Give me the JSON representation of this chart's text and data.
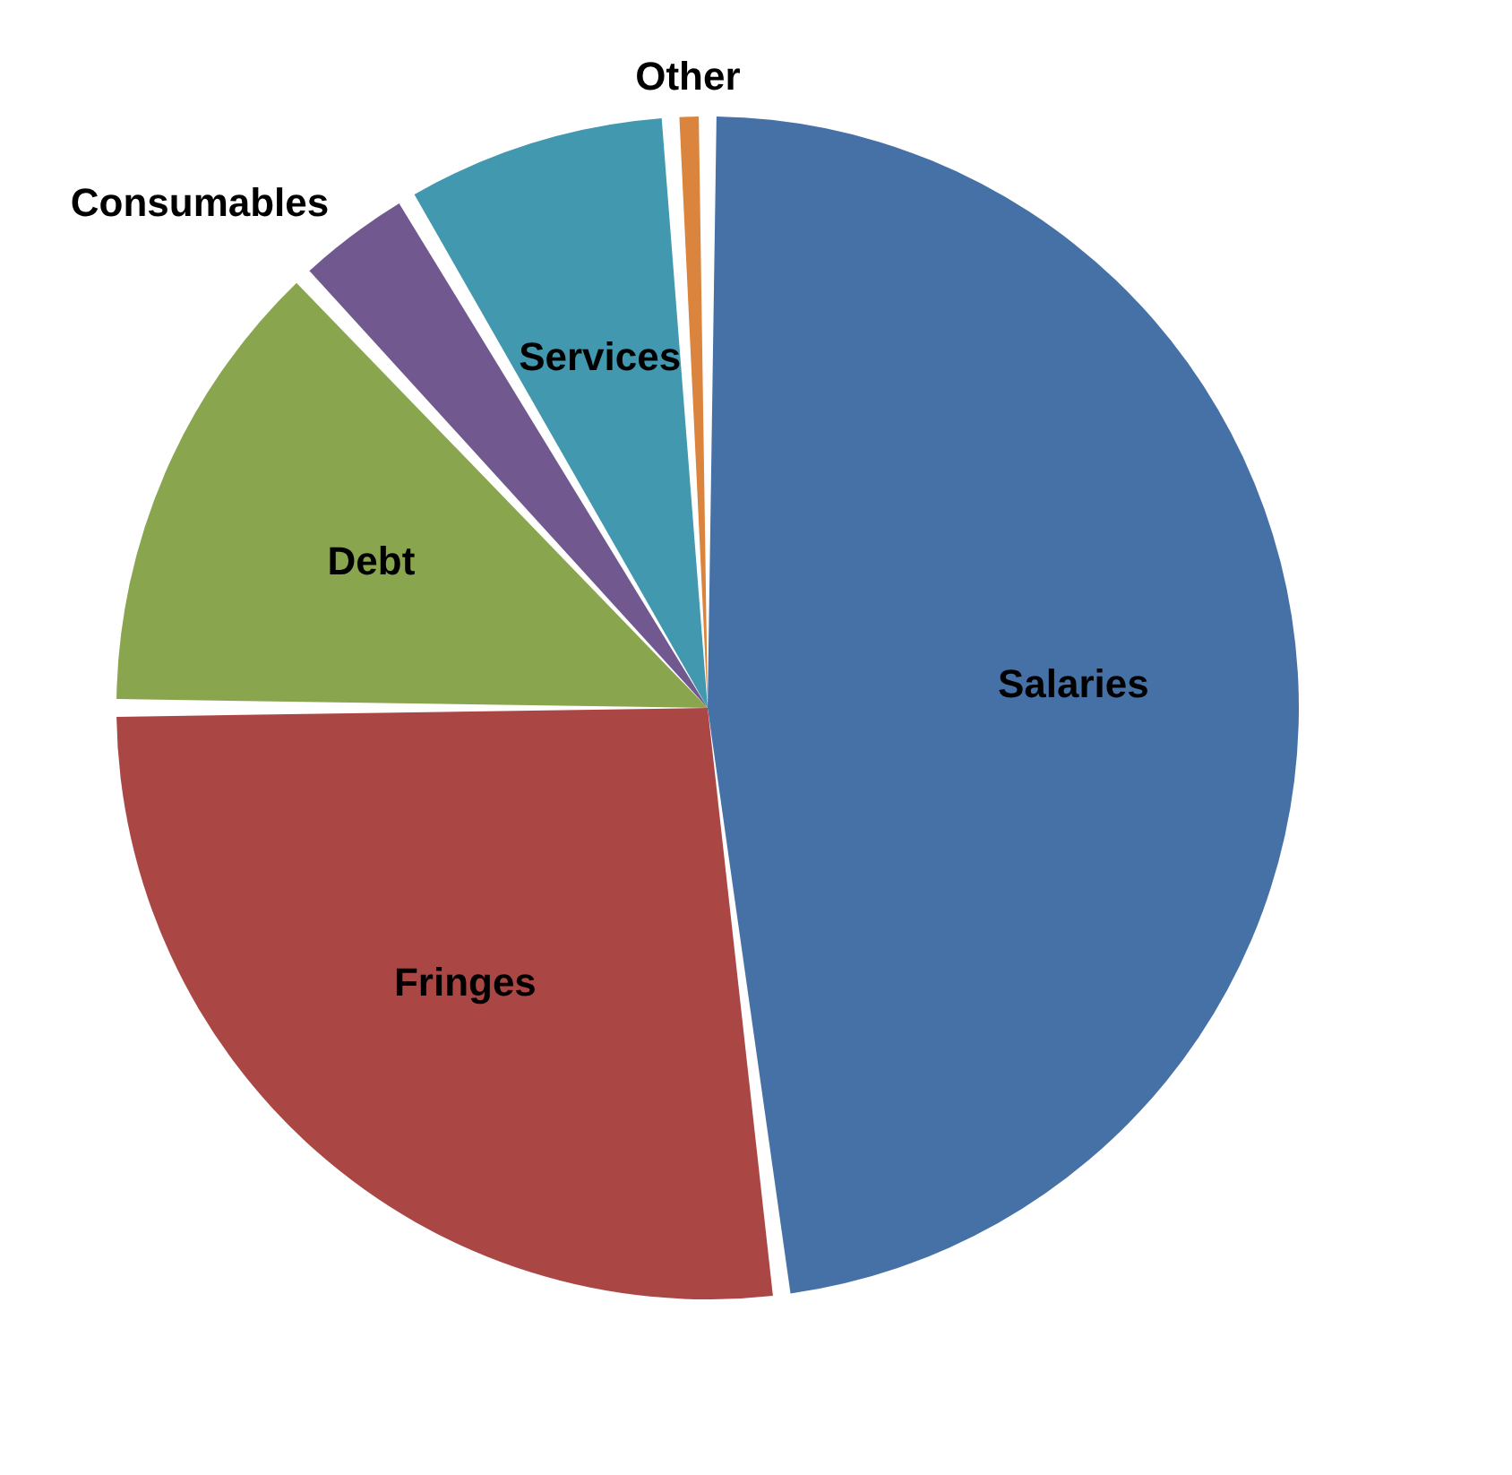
{
  "chart_data": {
    "type": "pie",
    "categories": [
      "Salaries",
      "Fringes",
      "Debt",
      "Consumables",
      "Services",
      "Other"
    ],
    "values": [
      48,
      27,
      13,
      3.5,
      7.5,
      1
    ],
    "colors": [
      "#4671a6",
      "#aa4644",
      "#89a54e",
      "#71588f",
      "#4198af",
      "#db843d"
    ],
    "legend": false
  }
}
